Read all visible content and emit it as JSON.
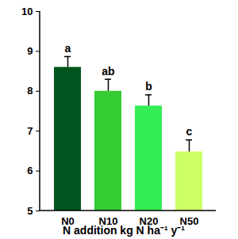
{
  "chart_data": {
    "type": "bar",
    "x_label": "N addition kg N ha⁻¹ y⁻¹",
    "categories": [
      "N0",
      "N10",
      "N20",
      "N50"
    ],
    "values": [
      8.6,
      8.0,
      7.63,
      6.48
    ],
    "errors": [
      0.27,
      0.3,
      0.28,
      0.3
    ],
    "annotations": [
      "a",
      "ab",
      "b",
      "c"
    ],
    "colors": [
      "#00551e",
      "#33cc33",
      "#33ee55",
      "#ccff66"
    ],
    "ylim": [
      5,
      10
    ],
    "yticks": [
      5,
      6,
      7,
      8,
      9,
      10
    ],
    "grid": false
  }
}
